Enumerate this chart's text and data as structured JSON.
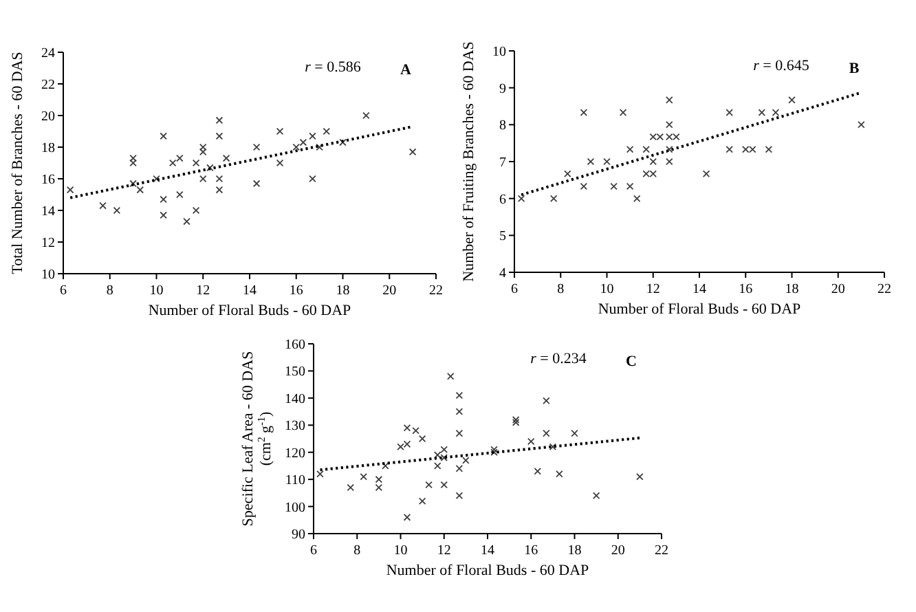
{
  "chart_data": [
    {
      "type": "scatter",
      "xlabel": "Number of Floral Buds - 60 DAP",
      "ylabel": "Total Number of Branches - 60 DAS",
      "annotations": [
        "r = 0.586",
        "A"
      ],
      "xlim": [
        6,
        22
      ],
      "xticks": [
        6,
        8,
        10,
        12,
        14,
        16,
        18,
        20,
        22
      ],
      "ylim": [
        10,
        24
      ],
      "yticks": [
        10,
        12,
        14,
        16,
        18,
        20,
        22,
        24
      ],
      "series": [
        {
          "marker": "cross",
          "color": "#404040",
          "x": [
            6.3,
            7.7,
            8.3,
            9,
            9,
            9,
            9.3,
            10,
            10.3,
            10.3,
            10.3,
            10.7,
            11,
            11,
            11.3,
            11.7,
            11.7,
            12,
            12,
            12,
            12.3,
            12.7,
            12.7,
            12.7,
            12.7,
            13,
            14.3,
            14.3,
            15.3,
            15.3,
            16,
            16.3,
            16.7,
            16.7,
            17,
            17.3,
            18,
            19,
            21
          ],
          "values": [
            15.3,
            14.3,
            14,
            17.3,
            17,
            15.7,
            15.3,
            16,
            18.7,
            14.7,
            13.7,
            17,
            17.3,
            15,
            13.3,
            17,
            14,
            18,
            17.7,
            16,
            16.7,
            19.7,
            18.7,
            16,
            15.3,
            17.3,
            18,
            15.7,
            19,
            17,
            18,
            18.3,
            18.7,
            16,
            18,
            19,
            18.3,
            20,
            17.7
          ]
        },
        {
          "type": "line",
          "marker": "none",
          "color": "#000000",
          "line_style": "dotted",
          "x": [
            6.3,
            21
          ],
          "values": [
            14.8,
            19.3
          ]
        }
      ]
    },
    {
      "type": "scatter",
      "xlabel": "Number of Floral Buds - 60 DAP",
      "ylabel": "Number of Fruiting Branches - 60 DAS",
      "annotations": [
        "r = 0.645",
        "B"
      ],
      "xlim": [
        6,
        22
      ],
      "xticks": [
        6,
        8,
        10,
        12,
        14,
        16,
        18,
        20,
        22
      ],
      "ylim": [
        4,
        10
      ],
      "yticks": [
        4,
        5,
        6,
        7,
        8,
        9,
        10
      ],
      "series": [
        {
          "marker": "cross",
          "color": "#404040",
          "x": [
            6.3,
            7.7,
            8.3,
            9,
            9,
            9.3,
            10,
            10.3,
            10.7,
            11,
            11,
            11.3,
            11.7,
            11.7,
            12,
            12,
            12,
            12.3,
            12.7,
            12.7,
            12.7,
            12.7,
            12.7,
            13,
            14.3,
            15.3,
            15.3,
            16,
            16.3,
            16.7,
            17,
            17.3,
            18,
            21
          ],
          "values": [
            6,
            6,
            6.67,
            8.33,
            6.33,
            7,
            7,
            6.33,
            8.33,
            7.33,
            6.33,
            6,
            7.33,
            6.67,
            7.67,
            7,
            6.67,
            7.67,
            8.67,
            8,
            7.67,
            7.33,
            7,
            7.67,
            6.67,
            8.33,
            7.33,
            7.33,
            7.33,
            8.33,
            7.33,
            8.33,
            8.67,
            8
          ]
        },
        {
          "type": "line",
          "marker": "none",
          "color": "#000000",
          "line_style": "dotted",
          "x": [
            6.3,
            21
          ],
          "values": [
            6.1,
            8.87
          ]
        }
      ]
    },
    {
      "type": "scatter",
      "xlabel": "Number of Floral Buds - 60 DAP",
      "ylabel": "Specific Leaf Area - 60 DAS\n(cm$^{2}$ g$^{-1}$)",
      "annotations": [
        "r = 0.234",
        "C"
      ],
      "xlim": [
        6,
        22
      ],
      "xticks": [
        6,
        8,
        10,
        12,
        14,
        16,
        18,
        20,
        22
      ],
      "ylim": [
        90,
        160
      ],
      "yticks": [
        90,
        100,
        110,
        120,
        130,
        140,
        150,
        160
      ],
      "series": [
        {
          "marker": "cross",
          "color": "#404040",
          "x": [
            6.3,
            7.7,
            8.3,
            9,
            9,
            9.3,
            10,
            10.3,
            10.3,
            10.3,
            10.7,
            11,
            11,
            11.3,
            11.7,
            11.7,
            12,
            12,
            12,
            12.3,
            12.7,
            12.7,
            12.7,
            12.7,
            12.7,
            13,
            14.3,
            14.3,
            15.3,
            15.3,
            16,
            16.3,
            16.7,
            16.7,
            17,
            17.3,
            18,
            19,
            21
          ],
          "values": [
            112,
            107,
            111,
            110,
            107,
            115,
            122,
            129,
            123,
            96,
            128,
            125,
            102,
            108,
            119,
            115,
            121,
            118,
            108,
            148,
            141,
            135,
            127,
            114,
            104,
            117,
            121,
            120,
            132,
            131,
            124,
            113,
            139,
            127,
            122,
            112,
            127,
            104,
            111
          ]
        },
        {
          "type": "line",
          "marker": "none",
          "color": "#000000",
          "line_style": "dotted",
          "x": [
            6.3,
            21
          ],
          "values": [
            113.5,
            125.3
          ]
        }
      ]
    }
  ]
}
